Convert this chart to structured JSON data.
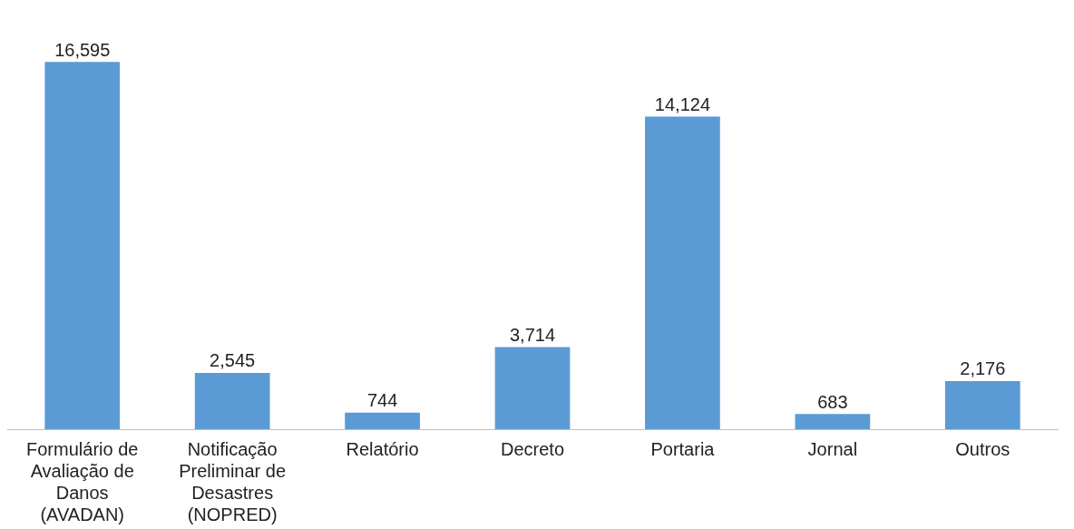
{
  "chart_data": {
    "type": "bar",
    "categories": [
      "Formulário de Avaliação de Danos (AVADAN)",
      "Notificação Preliminar de Desastres (NOPRED)",
      "Relatório",
      "Decreto",
      "Portaria",
      "Jornal",
      "Outros"
    ],
    "values": [
      16595,
      2545,
      744,
      3714,
      14124,
      683,
      2176
    ],
    "color": "#5b9bd5",
    "value_labels": [
      "16,595",
      "2,545",
      "744",
      "3,714",
      "14,124",
      "683",
      "2,176"
    ]
  }
}
